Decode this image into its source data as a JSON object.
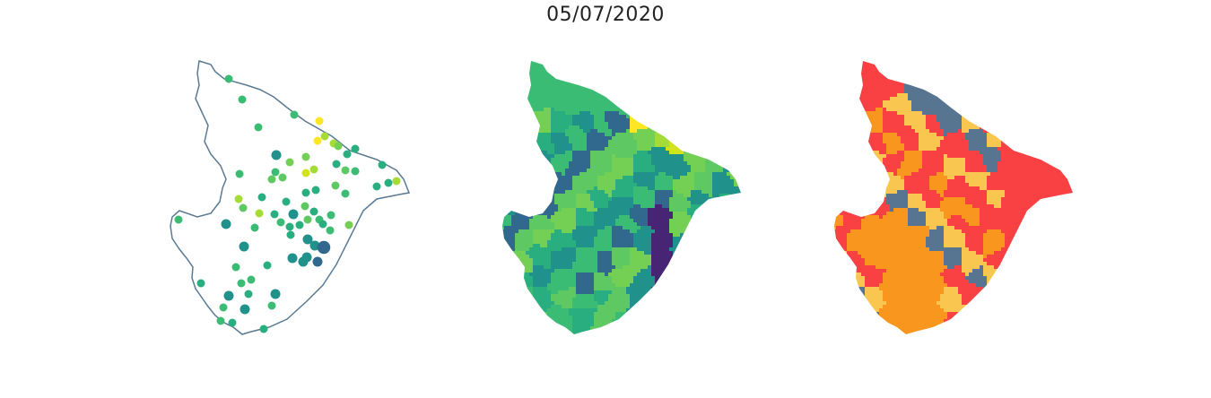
{
  "figure": {
    "title": "05/07/2020"
  },
  "colors": {
    "outline": "#5a7a94",
    "viridis": [
      "#482475",
      "#31688e",
      "#21918c",
      "#29af7f",
      "#3bbc74",
      "#5ec962",
      "#74d055",
      "#a5db36",
      "#d2e21b",
      "#fde725"
    ],
    "categories": [
      "#f94144",
      "#f9c74f",
      "#f8961e",
      "#577590"
    ]
  },
  "panels": [
    {
      "name": "points-panel",
      "type": "proportional-points"
    },
    {
      "name": "viridis-choropleth-panel",
      "type": "choropleth"
    },
    {
      "name": "category-choropleth-panel",
      "type": "choropleth"
    }
  ]
}
